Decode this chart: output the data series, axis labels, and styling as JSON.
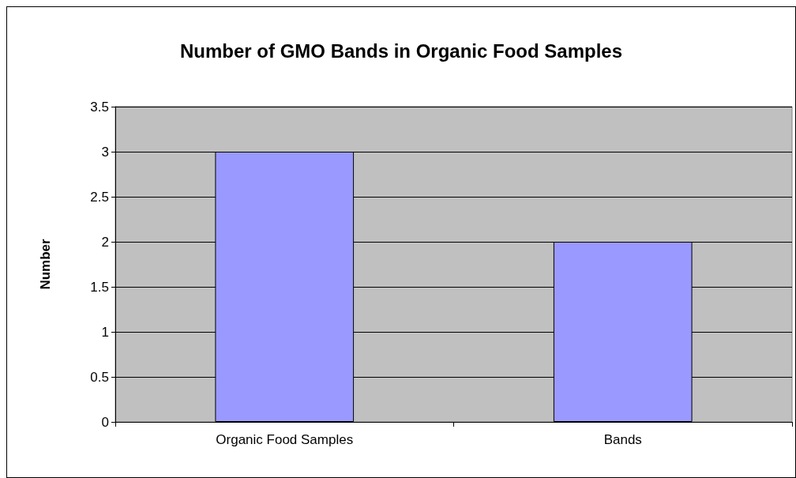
{
  "chart_data": {
    "type": "bar",
    "title": "Number of GMO Bands in Organic Food Samples",
    "ylabel": "Number",
    "categories": [
      "Organic Food Samples",
      "Bands"
    ],
    "values": [
      3,
      2
    ],
    "color": "#9999ff",
    "ylim": [
      0,
      3.5
    ],
    "yticks": [
      0,
      0.5,
      1,
      1.5,
      2,
      2.5,
      3,
      3.5
    ],
    "grid": "y"
  }
}
